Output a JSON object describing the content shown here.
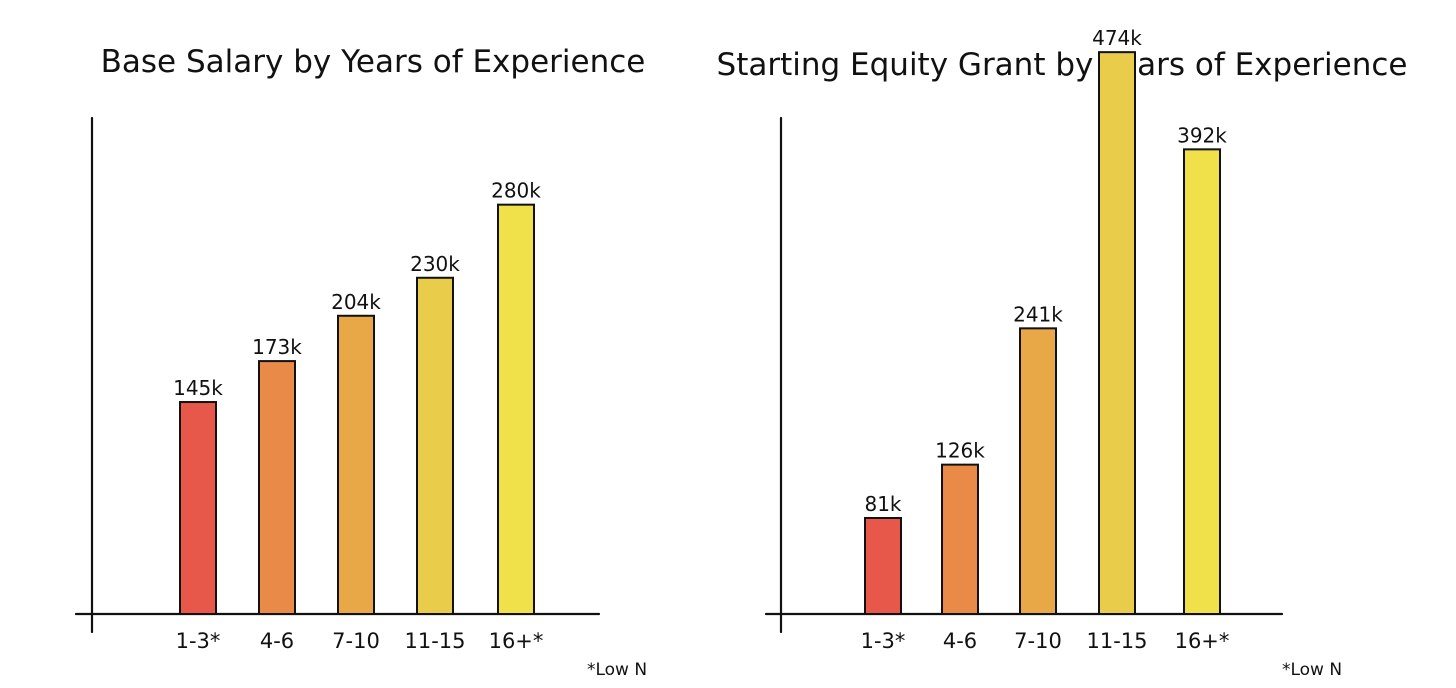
{
  "chart_data": [
    {
      "type": "bar",
      "title": "Base Salary by Years of Experience",
      "categories": [
        "1-3*",
        "4-6",
        "7-10",
        "11-15",
        "16+*"
      ],
      "values": [
        145,
        173,
        204,
        230,
        280
      ],
      "data_labels": [
        "145k",
        "173k",
        "204k",
        "230k",
        "280k"
      ],
      "colors": [
        "#e8584a",
        "#e98a48",
        "#e9a847",
        "#e9cc4a",
        "#f0e14a"
      ],
      "note": "*Low N",
      "ylim": [
        0,
        420
      ],
      "grid": false
    },
    {
      "type": "bar",
      "title": "Starting Equity Grant by Years of Experience",
      "categories": [
        "1-3*",
        "4-6",
        "7-10",
        "11-15",
        "16+*"
      ],
      "values": [
        81,
        126,
        241,
        474,
        392
      ],
      "data_labels": [
        "81k",
        "126k",
        "241k",
        "474k",
        "392k"
      ],
      "colors": [
        "#e8584a",
        "#e98a48",
        "#e9a847",
        "#e9cc4a",
        "#f0e14a"
      ],
      "note": "*Low N",
      "ylim": [
        0,
        518
      ],
      "grid": false
    }
  ]
}
